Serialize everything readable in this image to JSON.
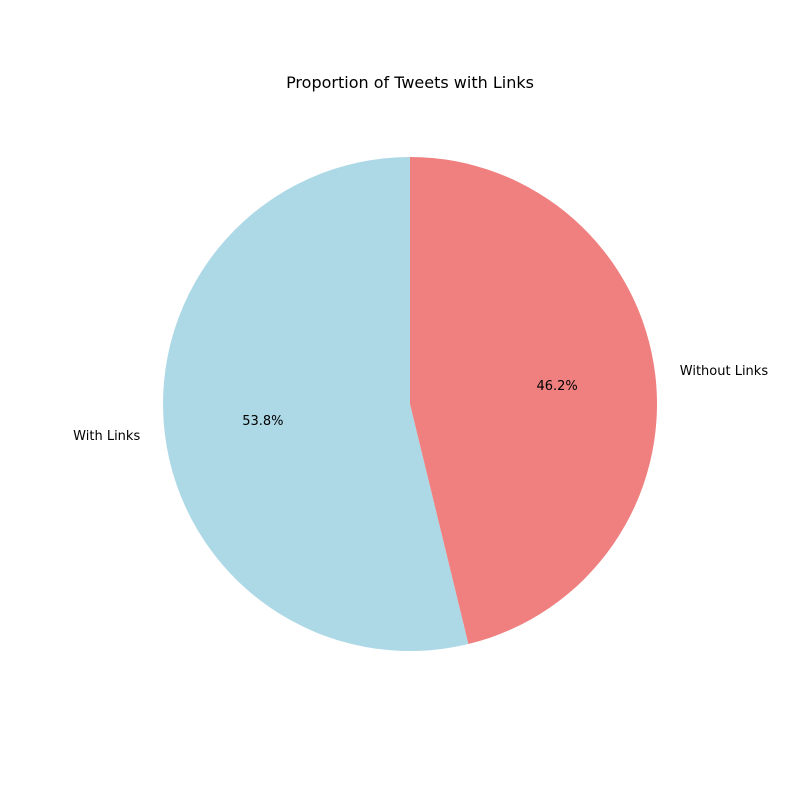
{
  "chart_data": {
    "type": "pie",
    "title": "Proportion of Tweets with Links",
    "slices": [
      {
        "label": "With Links",
        "value": 53.8,
        "pct_label": "53.8%",
        "color": "#add8e6"
      },
      {
        "label": "Without Links",
        "value": 46.2,
        "pct_label": "46.2%",
        "color": "#f08080"
      }
    ],
    "start_angle_deg": 90,
    "direction": "counterclockwise"
  }
}
